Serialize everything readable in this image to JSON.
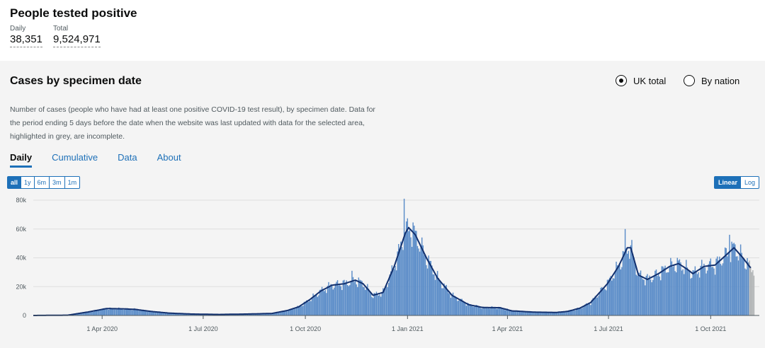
{
  "headline": {
    "title": "People tested positive",
    "daily_label": "Daily",
    "daily_value": "38,351",
    "total_label": "Total",
    "total_value": "9,524,971"
  },
  "card": {
    "title": "Cases by specimen date",
    "radio_uk": "UK total",
    "radio_nation": "By nation",
    "description": "Number of cases (people who have had at least one positive COVID-19 test result), by specimen date. Data for the period ending 5 days before the date when the website was last updated with data for the selected area, highlighted in grey, are incomplete.",
    "tabs": [
      "Daily",
      "Cumulative",
      "Data",
      "About"
    ],
    "ranges": [
      "all",
      "1y",
      "6m",
      "3m",
      "1m"
    ],
    "scales": [
      "Linear",
      "Log"
    ]
  },
  "colors": {
    "bar": "#5a8cc8",
    "avg_line": "#12306e",
    "incomplete": "#b1b4b6",
    "accent": "#1d70b8"
  },
  "chart_data": {
    "type": "bar",
    "title": "",
    "ylim": [
      0,
      80000
    ],
    "y_ticks": [
      0,
      20000,
      40000,
      60000,
      80000
    ],
    "y_tick_labels": [
      "0",
      "20k",
      "40k",
      "60k",
      "80k"
    ],
    "x_ticks": [
      "1 Apr 2020",
      "1 Jul 2020",
      "1 Oct 2020",
      "1 Jan 2021",
      "1 Apr 2021",
      "1 Jul 2021",
      "1 Oct 2021"
    ],
    "x_range": [
      "2020-01-30",
      "2021-11-10"
    ],
    "rolling_average": [
      [
        "2020-01-30",
        0
      ],
      [
        "2020-03-01",
        200
      ],
      [
        "2020-03-20",
        2500
      ],
      [
        "2020-04-05",
        4800
      ],
      [
        "2020-04-20",
        4600
      ],
      [
        "2020-05-01",
        4200
      ],
      [
        "2020-05-15",
        2800
      ],
      [
        "2020-06-01",
        1600
      ],
      [
        "2020-06-20",
        1000
      ],
      [
        "2020-07-15",
        700
      ],
      [
        "2020-08-10",
        1000
      ],
      [
        "2020-09-01",
        1400
      ],
      [
        "2020-09-15",
        3500
      ],
      [
        "2020-09-25",
        6000
      ],
      [
        "2020-10-05",
        11000
      ],
      [
        "2020-10-15",
        17000
      ],
      [
        "2020-10-25",
        21000
      ],
      [
        "2020-11-05",
        22000
      ],
      [
        "2020-11-15",
        24500
      ],
      [
        "2020-11-22",
        22000
      ],
      [
        "2020-12-01",
        14000
      ],
      [
        "2020-12-10",
        16000
      ],
      [
        "2020-12-20",
        34000
      ],
      [
        "2020-12-30",
        57000
      ],
      [
        "2021-01-02",
        61000
      ],
      [
        "2021-01-08",
        56000
      ],
      [
        "2021-01-18",
        40000
      ],
      [
        "2021-01-28",
        26000
      ],
      [
        "2021-02-10",
        14000
      ],
      [
        "2021-02-25",
        7500
      ],
      [
        "2021-03-10",
        5500
      ],
      [
        "2021-03-25",
        5400
      ],
      [
        "2021-04-05",
        3200
      ],
      [
        "2021-04-25",
        2300
      ],
      [
        "2021-05-15",
        2100
      ],
      [
        "2021-05-25",
        2800
      ],
      [
        "2021-06-05",
        5000
      ],
      [
        "2021-06-15",
        9000
      ],
      [
        "2021-06-30",
        22000
      ],
      [
        "2021-07-10",
        34000
      ],
      [
        "2021-07-18",
        47000
      ],
      [
        "2021-07-21",
        47000
      ],
      [
        "2021-07-28",
        28000
      ],
      [
        "2021-08-05",
        25000
      ],
      [
        "2021-08-15",
        29000
      ],
      [
        "2021-08-25",
        34000
      ],
      [
        "2021-09-02",
        36000
      ],
      [
        "2021-09-10",
        32000
      ],
      [
        "2021-09-15",
        29000
      ],
      [
        "2021-09-25",
        34000
      ],
      [
        "2021-10-05",
        35000
      ],
      [
        "2021-10-15",
        42000
      ],
      [
        "2021-10-22",
        47000
      ],
      [
        "2021-10-30",
        40000
      ],
      [
        "2021-11-06",
        33000
      ]
    ],
    "peaks": [
      [
        "2020-04-08",
        5500
      ],
      [
        "2020-11-12",
        31000
      ],
      [
        "2020-12-29",
        81000
      ],
      [
        "2021-07-16",
        60000
      ],
      [
        "2021-10-18",
        56000
      ]
    ],
    "incomplete_from": "2021-11-05"
  }
}
